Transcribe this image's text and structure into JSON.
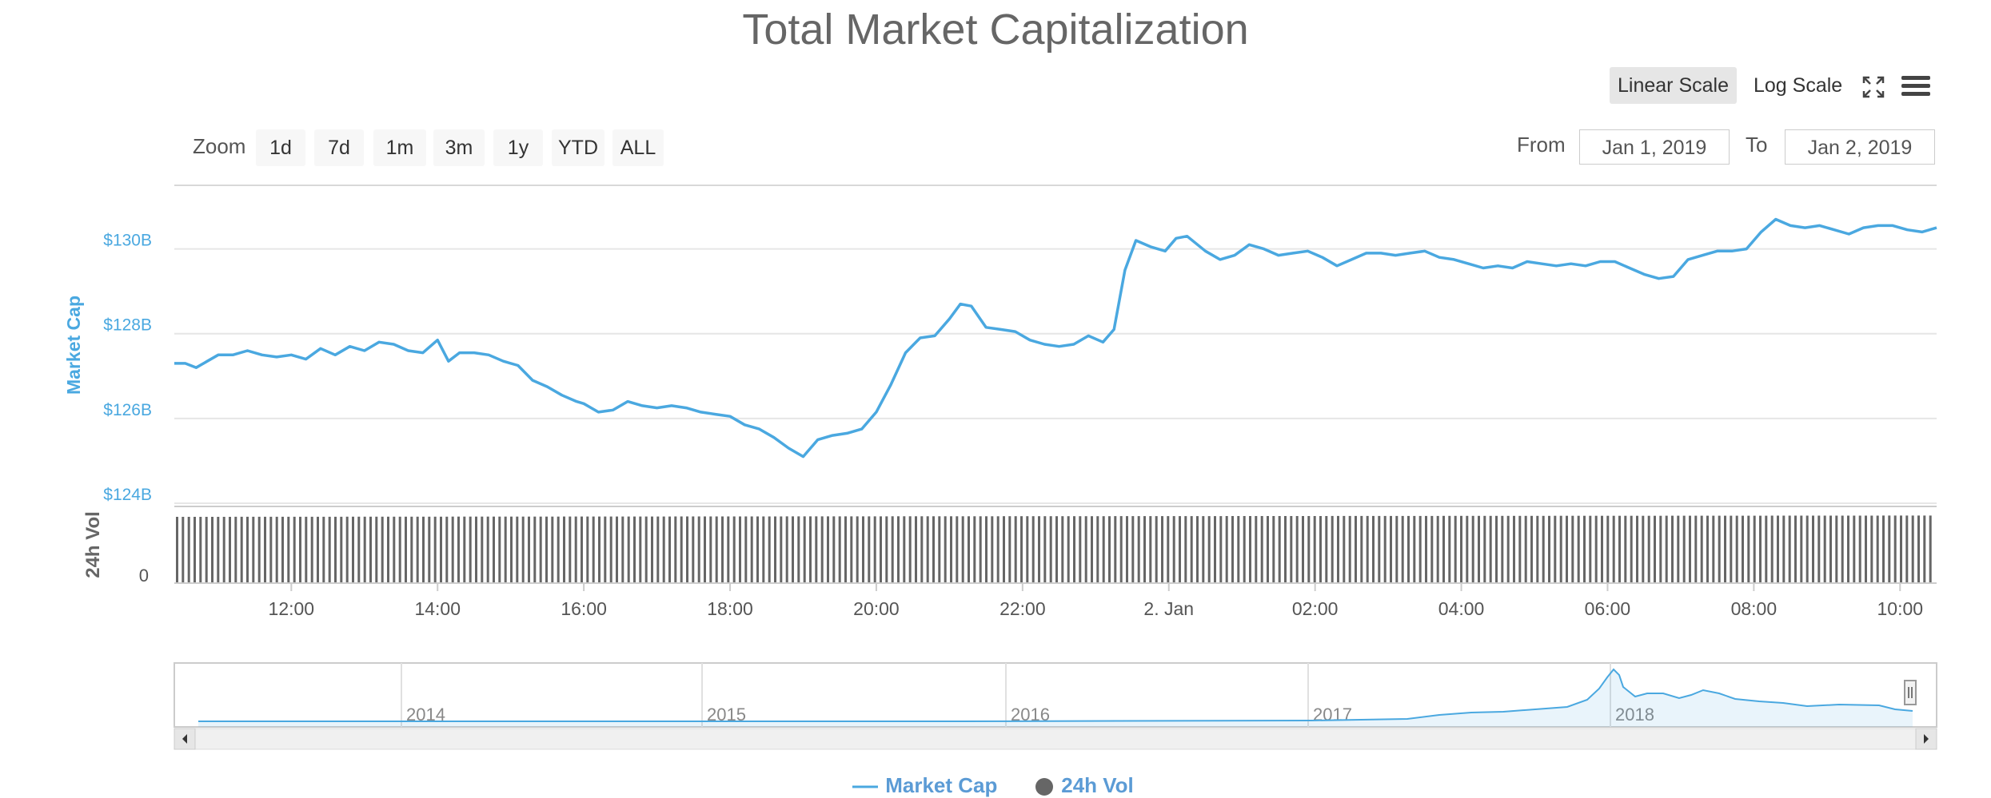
{
  "title": "Total Market Capitalization",
  "controls": {
    "scale_options": [
      "Linear Scale",
      "Log Scale"
    ],
    "active_scale": "Linear Scale",
    "zoom_label": "Zoom",
    "zoom_buttons": [
      "1d",
      "7d",
      "1m",
      "3m",
      "1y",
      "YTD",
      "ALL"
    ],
    "from_label": "From",
    "from_value": "Jan 1, 2019",
    "to_label": "To",
    "to_value": "Jan 2, 2019",
    "icons": [
      "fullscreen-icon",
      "menu-icon"
    ]
  },
  "colors": {
    "line": "#4aa8e0",
    "axis_text": "#4aa8e0",
    "bars": "#666666",
    "grid": "#e6e6e6",
    "navigator": "#4aa8e0"
  },
  "legend": [
    {
      "name": "Market Cap",
      "symbol": "line"
    },
    {
      "name": "24h Vol",
      "symbol": "circle"
    }
  ],
  "chart_data": {
    "type": "line",
    "title": "Total Market Capitalization",
    "x_ticks": [
      "12:00",
      "14:00",
      "16:00",
      "18:00",
      "20:00",
      "22:00",
      "2. Jan",
      "02:00",
      "04:00",
      "06:00",
      "08:00",
      "10:00"
    ],
    "y_axis": {
      "label": "Market Cap",
      "ticks": [
        "$124B",
        "$126B",
        "$128B",
        "$130B"
      ],
      "tick_values": [
        124,
        126,
        128,
        130
      ],
      "unit": "B USD",
      "ylim": [
        124,
        131.5
      ]
    },
    "volume_axis": {
      "label": "24h Vol",
      "ticks": [
        "0"
      ]
    },
    "x_range_hours": [
      10.4,
      34.5
    ],
    "series": [
      {
        "name": "Market Cap",
        "type": "line",
        "points": [
          [
            10.4,
            127.3
          ],
          [
            10.55,
            127.3
          ],
          [
            10.7,
            127.2
          ],
          [
            10.85,
            127.35
          ],
          [
            11.0,
            127.5
          ],
          [
            11.2,
            127.5
          ],
          [
            11.4,
            127.6
          ],
          [
            11.6,
            127.5
          ],
          [
            11.8,
            127.45
          ],
          [
            12.0,
            127.5
          ],
          [
            12.2,
            127.4
          ],
          [
            12.4,
            127.65
          ],
          [
            12.6,
            127.5
          ],
          [
            12.8,
            127.7
          ],
          [
            13.0,
            127.6
          ],
          [
            13.2,
            127.8
          ],
          [
            13.4,
            127.75
          ],
          [
            13.6,
            127.6
          ],
          [
            13.8,
            127.55
          ],
          [
            14.0,
            127.85
          ],
          [
            14.15,
            127.35
          ],
          [
            14.3,
            127.55
          ],
          [
            14.5,
            127.55
          ],
          [
            14.7,
            127.5
          ],
          [
            14.9,
            127.35
          ],
          [
            15.1,
            127.25
          ],
          [
            15.3,
            126.9
          ],
          [
            15.5,
            126.75
          ],
          [
            15.7,
            126.55
          ],
          [
            15.9,
            126.4
          ],
          [
            16.0,
            126.35
          ],
          [
            16.2,
            126.15
          ],
          [
            16.4,
            126.2
          ],
          [
            16.6,
            126.4
          ],
          [
            16.8,
            126.3
          ],
          [
            17.0,
            126.25
          ],
          [
            17.2,
            126.3
          ],
          [
            17.4,
            126.25
          ],
          [
            17.6,
            126.15
          ],
          [
            17.8,
            126.1
          ],
          [
            18.0,
            126.05
          ],
          [
            18.2,
            125.85
          ],
          [
            18.4,
            125.75
          ],
          [
            18.6,
            125.55
          ],
          [
            18.8,
            125.3
          ],
          [
            19.0,
            125.1
          ],
          [
            19.2,
            125.5
          ],
          [
            19.4,
            125.6
          ],
          [
            19.6,
            125.65
          ],
          [
            19.8,
            125.75
          ],
          [
            20.0,
            126.15
          ],
          [
            20.2,
            126.8
          ],
          [
            20.4,
            127.55
          ],
          [
            20.6,
            127.9
          ],
          [
            20.8,
            127.95
          ],
          [
            21.0,
            128.35
          ],
          [
            21.15,
            128.7
          ],
          [
            21.3,
            128.65
          ],
          [
            21.5,
            128.15
          ],
          [
            21.7,
            128.1
          ],
          [
            21.9,
            128.05
          ],
          [
            22.1,
            127.85
          ],
          [
            22.3,
            127.75
          ],
          [
            22.5,
            127.7
          ],
          [
            22.7,
            127.75
          ],
          [
            22.9,
            127.95
          ],
          [
            23.1,
            127.8
          ],
          [
            23.25,
            128.1
          ],
          [
            23.4,
            129.5
          ],
          [
            23.55,
            130.2
          ],
          [
            23.75,
            130.05
          ],
          [
            23.95,
            129.95
          ],
          [
            24.1,
            130.25
          ],
          [
            24.25,
            130.3
          ],
          [
            24.5,
            129.95
          ],
          [
            24.7,
            129.75
          ],
          [
            24.9,
            129.85
          ],
          [
            25.1,
            130.1
          ],
          [
            25.3,
            130.0
          ],
          [
            25.5,
            129.85
          ],
          [
            25.7,
            129.9
          ],
          [
            25.9,
            129.95
          ],
          [
            26.1,
            129.8
          ],
          [
            26.3,
            129.6
          ],
          [
            26.5,
            129.75
          ],
          [
            26.7,
            129.9
          ],
          [
            26.9,
            129.9
          ],
          [
            27.1,
            129.85
          ],
          [
            27.3,
            129.9
          ],
          [
            27.5,
            129.95
          ],
          [
            27.7,
            129.8
          ],
          [
            27.9,
            129.75
          ],
          [
            28.1,
            129.65
          ],
          [
            28.3,
            129.55
          ],
          [
            28.5,
            129.6
          ],
          [
            28.7,
            129.55
          ],
          [
            28.9,
            129.7
          ],
          [
            29.1,
            129.65
          ],
          [
            29.3,
            129.6
          ],
          [
            29.5,
            129.65
          ],
          [
            29.7,
            129.6
          ],
          [
            29.9,
            129.7
          ],
          [
            30.1,
            129.7
          ],
          [
            30.3,
            129.55
          ],
          [
            30.5,
            129.4
          ],
          [
            30.7,
            129.3
          ],
          [
            30.9,
            129.35
          ],
          [
            31.1,
            129.75
          ],
          [
            31.3,
            129.85
          ],
          [
            31.5,
            129.95
          ],
          [
            31.7,
            129.95
          ],
          [
            31.9,
            130.0
          ],
          [
            32.1,
            130.4
          ],
          [
            32.3,
            130.7
          ],
          [
            32.5,
            130.55
          ],
          [
            32.7,
            130.5
          ],
          [
            32.9,
            130.55
          ],
          [
            33.1,
            130.45
          ],
          [
            33.3,
            130.35
          ],
          [
            33.5,
            130.5
          ],
          [
            33.7,
            130.55
          ],
          [
            33.9,
            130.55
          ],
          [
            34.1,
            130.45
          ],
          [
            34.3,
            130.4
          ],
          [
            34.5,
            130.5
          ]
        ]
      },
      {
        "name": "24h Vol",
        "type": "column",
        "relative_heights": "approximately uniform across the range"
      }
    ],
    "navigator": {
      "labels": [
        "2014",
        "2015",
        "2016",
        "2017",
        "2018"
      ]
    },
    "grid": true,
    "legend_position": "bottom-center"
  }
}
